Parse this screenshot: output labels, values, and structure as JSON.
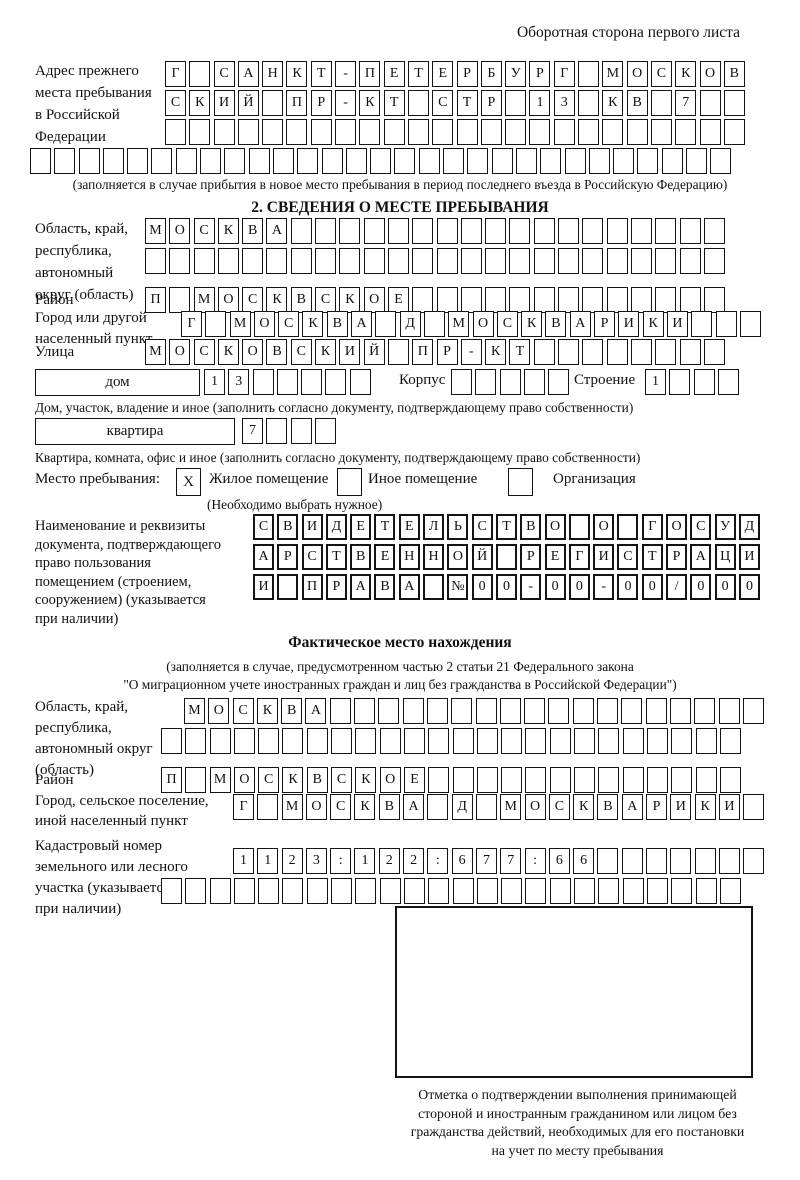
{
  "header": {
    "note": "Оборотная сторона первого листа"
  },
  "prev_address": {
    "label": "Адрес прежнего\nместа пребывания\nв Российской\nФедерации",
    "row1": {
      "text": "Г САНКТ-ПЕТЕРБУРГ МОСКОВ",
      "len": 24
    },
    "row2": {
      "text": "СКИЙ ПР-КТ СТР 13 КВ 7",
      "len": 24
    },
    "row3": {
      "text": "",
      "len": 24
    },
    "row4": {
      "text": "",
      "len": 29
    },
    "caption": "(заполняется в случае прибытия в новое место пребывания в период последнего въезда в Российскую Федерацию)"
  },
  "section2": {
    "title": "2. СВЕДЕНИЯ О МЕСТЕ ПРЕБЫВАНИЯ",
    "region_label": "Область, край,\nреспублика,\nавтономный\nокруг (область)",
    "region_row1": {
      "text": "МОСКВА",
      "len": 24
    },
    "region_row2": {
      "text": "",
      "len": 24
    },
    "district_label": "Район",
    "district_row": {
      "text": "П МОСКВСКОЕ",
      "len": 24
    },
    "city_label": "Город или другой\nнаселенный пункт",
    "city_row": {
      "text": "Г МОСКВА Д МОСКВАРИКИ",
      "len": 24
    },
    "street_label": "Улица",
    "street_row": {
      "text": "МОСКОВСКИЙ ПР-КТ",
      "len": 24
    },
    "house_box": "дом",
    "house_cells": {
      "text": "13",
      "len": 7
    },
    "korpus_label": "Корпус",
    "korpus_cells": {
      "text": "",
      "len": 5
    },
    "stroenie_label": "Строение",
    "stroenie_cells": {
      "text": "1",
      "len": 4
    },
    "house_caption": "Дом, участок, владение и иное (заполнить согласно документу, подтверждающему право собственности)",
    "flat_box": "квартира",
    "flat_cells": {
      "text": "7",
      "len": 4
    },
    "flat_caption": "Квартира, комната, офис и иное (заполнить согласно документу, подтверждающему право собственности)",
    "stay_label": "Место пребывания:",
    "stay_check1": "X",
    "stay_opt1": "Жилое помещение",
    "stay_check2": "",
    "stay_opt2": "Иное помещение",
    "stay_check3": "",
    "stay_opt3": "Организация",
    "stay_note": "(Необходимо выбрать нужное)",
    "doc_label": "Наименование и реквизиты\nдокумента, подтверждающего\nправо пользования\nпомещением (строением,\nсооружением) (указывается\nпри наличии)",
    "doc_row1": {
      "text": "СВИДЕТЕЛЬСТВО О ГОСУД",
      "len": 21
    },
    "doc_row2": {
      "text": "АРСТВЕННОЙ РЕГИСТРАЦИ",
      "len": 21
    },
    "doc_row3": {
      "text": "И ПРАВА №00-00-00/000",
      "len": 21
    }
  },
  "fact": {
    "title": "Фактическое место нахождения",
    "sub1": "(заполняется в случае, предусмотренном частью 2 статьи 21 Федерального закона",
    "sub2": "\"О миграционном учете иностранных граждан и лиц без гражданства в Российской Федерации\")",
    "region_label": "Область, край,\nреспублика,\nавтономный округ\n(область)",
    "region_row1": {
      "text": "МОСКВА",
      "len": 24
    },
    "region_row2": {
      "text": "",
      "len": 24
    },
    "district_label": "Район",
    "district_row": {
      "text": "П МОСКВСКОЕ",
      "len": 24
    },
    "city_label": "Город, сельское поселение,\nиной населенный пункт",
    "city_row": {
      "text": "Г МОСКВА Д МОСКВАРИКИ",
      "len": 22
    },
    "cadastre_label": "Кадастровый номер\nземельного или лесного\nучастка (указывается\nпри наличии)",
    "cadastre_row1": {
      "text": "1123:122:677:66",
      "len": 22
    },
    "cadastre_row2": {
      "text": "",
      "len": 24
    },
    "mark_caption": "Отметка о подтверждении выполнения принимающей\nстороной и иностранным гражданином или лицом без\nгражданства действий, необходимых для его постановки\nна учет по месту пребывания"
  }
}
